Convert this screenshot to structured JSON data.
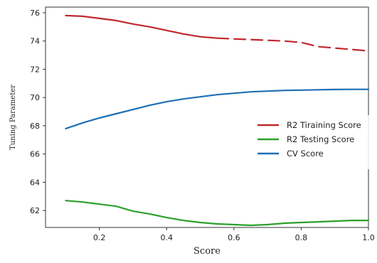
{
  "chart_data": {
    "type": "line",
    "xlabel": "Score",
    "ylabel": "Tuning Parameter",
    "xlim": [
      0.04,
      1.0
    ],
    "ylim": [
      60.8,
      76.4
    ],
    "xticks": [
      0.2,
      0.4,
      0.6,
      0.8,
      1.0
    ],
    "yticks": [
      62,
      64,
      66,
      68,
      70,
      72,
      74,
      76
    ],
    "xtick_labels": [
      "0.2",
      "0.4",
      "0.6",
      "0.8",
      "1.0"
    ],
    "ytick_labels": [
      "62",
      "64",
      "66",
      "68",
      "70",
      "72",
      "74",
      "76"
    ],
    "grid": false,
    "legend_position": "right",
    "series": [
      {
        "name": "R2 Tiraining Score",
        "color": "#c0282d",
        "line_style": "solid-then-dashed",
        "x": [
          0.1,
          0.15,
          0.2,
          0.25,
          0.3,
          0.35,
          0.4,
          0.45,
          0.5,
          0.55,
          0.6,
          0.65,
          0.7,
          0.75,
          0.8,
          0.85,
          0.9,
          0.95,
          1.0
        ],
        "y": [
          75.8,
          75.75,
          75.6,
          75.45,
          75.2,
          75.0,
          74.75,
          74.5,
          74.3,
          74.2,
          74.15,
          74.1,
          74.05,
          74.0,
          73.9,
          73.6,
          73.5,
          73.4,
          73.3
        ]
      },
      {
        "name": "R2 Testing Score",
        "color": "#2ca02c",
        "line_style": "solid",
        "x": [
          0.1,
          0.15,
          0.2,
          0.25,
          0.3,
          0.35,
          0.4,
          0.45,
          0.5,
          0.55,
          0.6,
          0.65,
          0.7,
          0.75,
          0.8,
          0.85,
          0.9,
          0.95,
          1.0
        ],
        "y": [
          62.7,
          62.6,
          62.45,
          62.3,
          61.95,
          61.75,
          61.5,
          61.3,
          61.15,
          61.05,
          61.0,
          60.95,
          61.0,
          61.1,
          61.15,
          61.2,
          61.25,
          61.3,
          61.3
        ]
      },
      {
        "name": "CV Score",
        "color": "#1f6fb4",
        "line_style": "solid",
        "x": [
          0.1,
          0.15,
          0.2,
          0.25,
          0.3,
          0.35,
          0.4,
          0.45,
          0.5,
          0.55,
          0.6,
          0.65,
          0.7,
          0.75,
          0.8,
          0.85,
          0.9,
          0.95,
          1.0
        ],
        "y": [
          67.8,
          68.2,
          68.55,
          68.85,
          69.15,
          69.45,
          69.7,
          69.9,
          70.05,
          70.2,
          70.3,
          70.4,
          70.45,
          70.5,
          70.52,
          70.55,
          70.57,
          70.58,
          70.58
        ]
      }
    ]
  }
}
